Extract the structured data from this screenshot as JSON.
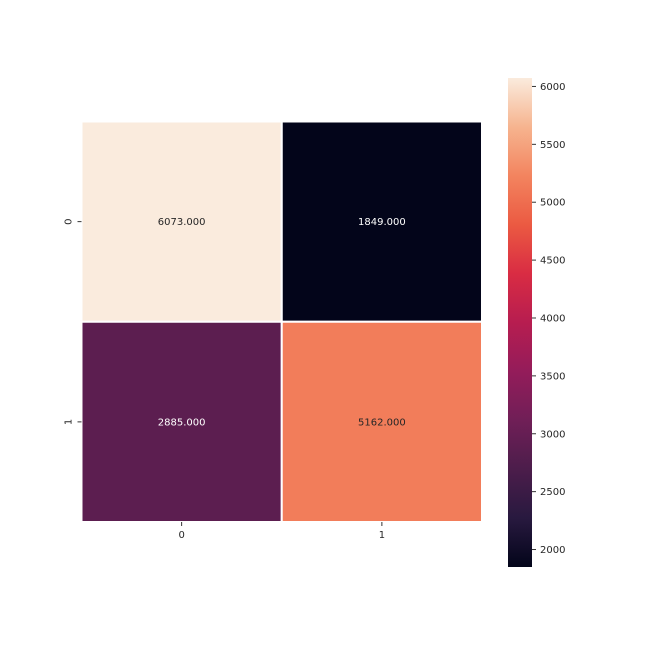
{
  "chart_data": {
    "type": "heatmap",
    "title": "",
    "xlabel": "",
    "ylabel": "",
    "x_categories": [
      "0",
      "1"
    ],
    "y_categories": [
      "0",
      "1"
    ],
    "values": [
      [
        6073,
        1849
      ],
      [
        2885,
        5162
      ]
    ],
    "annotations": [
      [
        "6073.000",
        "1849.000"
      ],
      [
        "2885.000",
        "5162.000"
      ]
    ],
    "colormap": "rocket",
    "colorbar": {
      "range": [
        1849,
        6073
      ],
      "ticks": [
        2000,
        2500,
        3000,
        3500,
        4000,
        4500,
        5000,
        5500,
        6000
      ],
      "tick_labels": [
        "2000",
        "2500",
        "3000",
        "3500",
        "4000",
        "4500",
        "5000",
        "5500",
        "6000"
      ]
    },
    "cell_border_color": "#ffffff",
    "annotation_colors": {
      "on_dark": "#ffffff",
      "on_light": "#262626"
    }
  }
}
